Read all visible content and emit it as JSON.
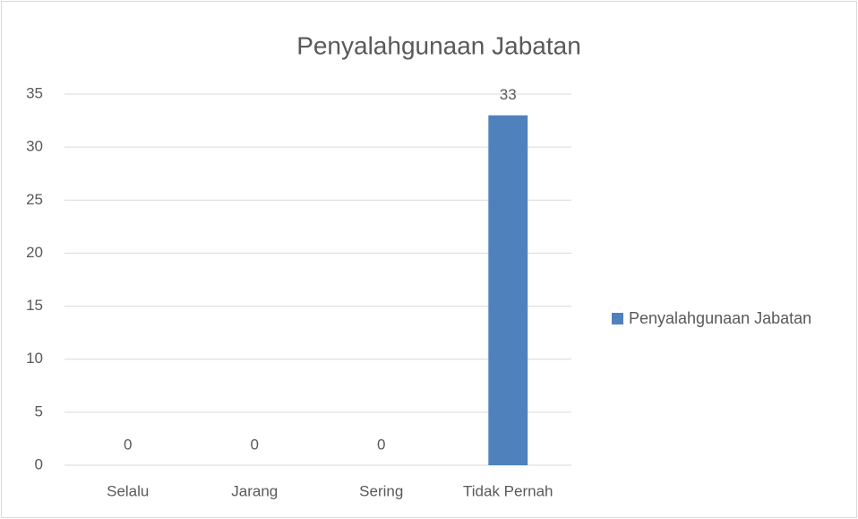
{
  "chart_data": {
    "type": "bar",
    "title": "Penyalahgunaan Jabatan",
    "categories": [
      "Selalu",
      "Jarang",
      "Sering",
      "Tidak Pernah"
    ],
    "series": [
      {
        "name": "Penyalahgunaan Jabatan",
        "color": "#4f81bd",
        "values": [
          0,
          0,
          0,
          33
        ]
      }
    ],
    "ylim": [
      0,
      35
    ],
    "yticks": [
      0,
      5,
      10,
      15,
      20,
      25,
      30,
      35
    ],
    "grid": true,
    "legend": "right",
    "data_labels": true
  }
}
